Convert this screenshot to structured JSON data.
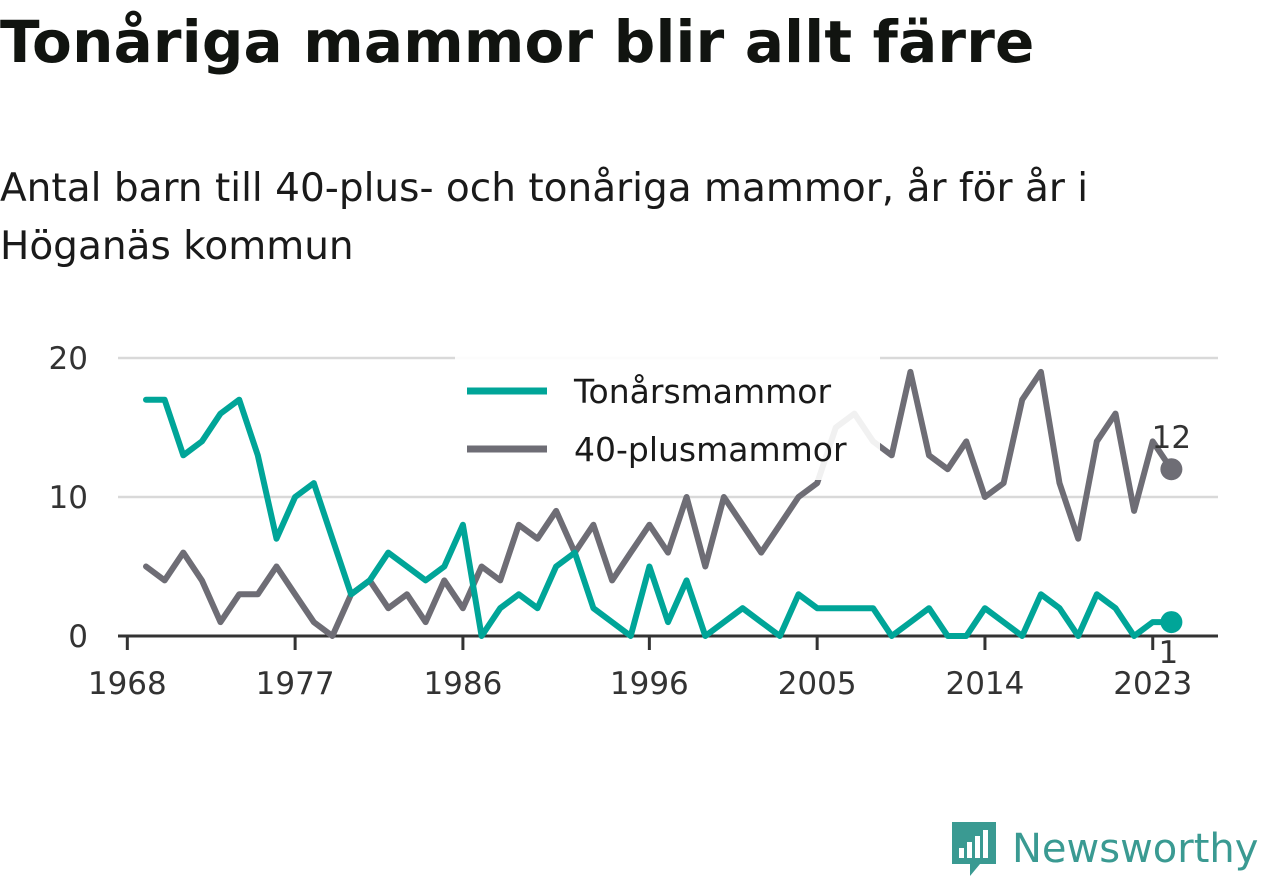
{
  "title": "Tonåriga mammor blir allt färre",
  "subtitle": "Antal barn till 40-plus- och tonåriga mammor, år för år i Höganäs kommun",
  "brand": "Newsworthy",
  "colors": {
    "teen": "#00a598",
    "plus40": "#6e6d75",
    "grid": "#d9d9d9",
    "axis": "#333333",
    "brand": "#3a9a92"
  },
  "chart_data": {
    "type": "line",
    "x": [
      1969,
      1970,
      1971,
      1972,
      1973,
      1974,
      1975,
      1976,
      1977,
      1978,
      1979,
      1980,
      1981,
      1982,
      1983,
      1984,
      1985,
      1986,
      1987,
      1988,
      1989,
      1990,
      1991,
      1992,
      1993,
      1994,
      1995,
      1996,
      1997,
      1998,
      1999,
      2000,
      2001,
      2002,
      2003,
      2004,
      2005,
      2006,
      2007,
      2008,
      2009,
      2010,
      2011,
      2012,
      2013,
      2014,
      2015,
      2016,
      2017,
      2018,
      2019,
      2020,
      2021,
      2022,
      2023,
      2024
    ],
    "series": [
      {
        "name": "Tonårsmammor",
        "color": "#00a598",
        "values": [
          17,
          17,
          13,
          14,
          16,
          17,
          13,
          7,
          10,
          11,
          7,
          3,
          4,
          6,
          5,
          4,
          5,
          8,
          0,
          2,
          3,
          2,
          5,
          6,
          2,
          1,
          0,
          5,
          1,
          4,
          0,
          1,
          2,
          1,
          0,
          3,
          2,
          2,
          2,
          2,
          0,
          1,
          2,
          0,
          0,
          2,
          1,
          0,
          3,
          2,
          0,
          3,
          2,
          0,
          1,
          1
        ]
      },
      {
        "name": "40-plusmammor",
        "color": "#6e6d75",
        "values": [
          5,
          4,
          6,
          4,
          1,
          3,
          3,
          5,
          3,
          1,
          0,
          3,
          4,
          2,
          3,
          1,
          4,
          2,
          5,
          4,
          8,
          7,
          9,
          6,
          8,
          4,
          6,
          8,
          6,
          10,
          5,
          10,
          8,
          6,
          8,
          10,
          11,
          15,
          16,
          14,
          13,
          19,
          13,
          12,
          14,
          10,
          11,
          17,
          19,
          11,
          7,
          14,
          16,
          9,
          14,
          12
        ]
      }
    ],
    "x_ticks": [
      "1968",
      "1977",
      "1986",
      "1996",
      "2005",
      "2014",
      "2023"
    ],
    "y_ticks": [
      "0",
      "10",
      "20"
    ],
    "end_labels": {
      "Tonårsmammor": "1",
      "40-plusmammor": "12"
    },
    "ylim": [
      0,
      20
    ],
    "xlim": [
      1967.5,
      2026.5
    ],
    "grid": true,
    "legend_position": "top-center"
  }
}
